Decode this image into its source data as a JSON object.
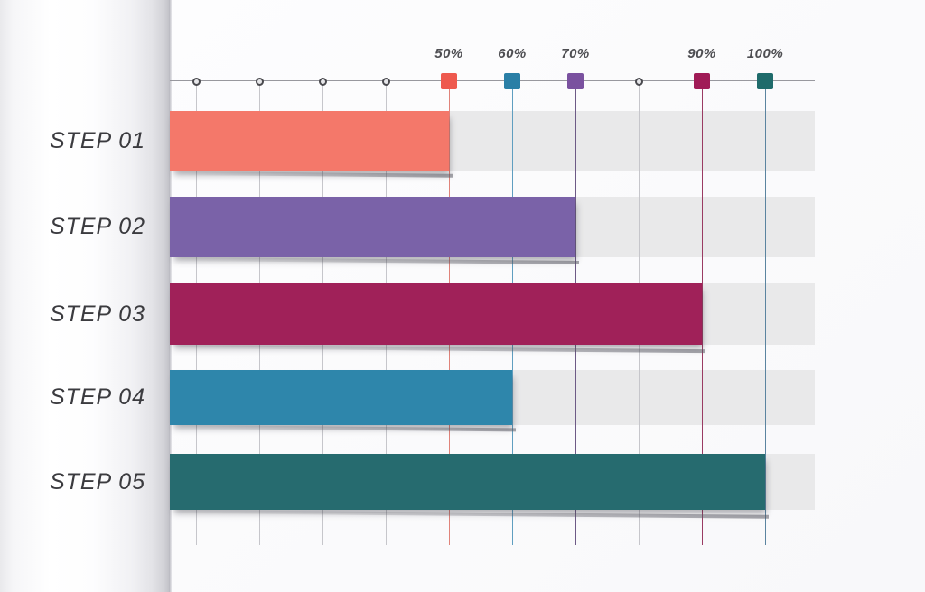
{
  "chart_data": {
    "type": "bar",
    "orientation": "horizontal",
    "title": "",
    "categories": [
      "STEP 01",
      "STEP 02",
      "STEP 03",
      "STEP 04",
      "STEP 05"
    ],
    "values": [
      50,
      70,
      90,
      60,
      100
    ],
    "value_unit": "%",
    "xlim": [
      0,
      100
    ],
    "x_ticks": [
      10,
      20,
      30,
      40,
      50,
      60,
      70,
      80,
      90,
      100
    ],
    "minor_ticks": [
      10,
      20,
      30,
      40,
      80
    ],
    "labeled_ticks": [
      {
        "value": 50,
        "label": "50%",
        "marker_color": "#ee594e",
        "gridline_color": "#e0837a"
      },
      {
        "value": 60,
        "label": "60%",
        "marker_color": "#2a7fa6",
        "gridline_color": "#5f9ec0"
      },
      {
        "value": 70,
        "label": "70%",
        "marker_color": "#7a519f",
        "gridline_color": "#6d5a86"
      },
      {
        "value": 90,
        "label": "90%",
        "marker_color": "#a01b56",
        "gridline_color": "#9a3b63"
      },
      {
        "value": 100,
        "label": "100%",
        "marker_color": "#1f6b6b",
        "gridline_color": "#5b84a0"
      }
    ],
    "series": [
      {
        "name": "STEP 01",
        "value": 50,
        "color": "#f4786a"
      },
      {
        "name": "STEP 02",
        "value": 70,
        "color": "#7a62a8"
      },
      {
        "name": "STEP 03",
        "value": 90,
        "color": "#a02159"
      },
      {
        "name": "STEP 04",
        "value": 60,
        "color": "#2e86ab"
      },
      {
        "name": "STEP 05",
        "value": 100,
        "color": "#266b6f"
      }
    ],
    "track_color": "#e9e9ea",
    "minor_gridline_color": "#c6c6cb",
    "axis_color": "#98989e",
    "grid": true,
    "legend": false
  }
}
